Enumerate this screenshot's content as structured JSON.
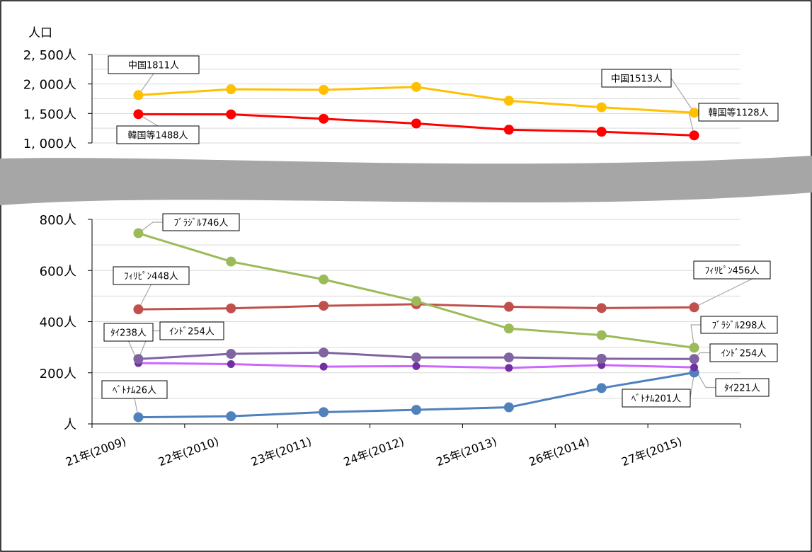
{
  "chart_data": {
    "type": "line",
    "ylabel": "人口",
    "categories": [
      "21年(2009)",
      "22年(2010)",
      "23年(2011)",
      "24年(2012)",
      "25年(2013)",
      "26年(2014)",
      "27年(2015)"
    ],
    "axis_break": [
      800,
      1000
    ],
    "upper_axis": {
      "ylim": [
        1000,
        2500
      ],
      "ticks": [
        {
          "value": 1000,
          "label": "1, 000人"
        },
        {
          "value": 1500,
          "label": "1, 500人"
        },
        {
          "value": 2000,
          "label": "2, 000人"
        },
        {
          "value": 2500,
          "label": "2, 500人"
        }
      ]
    },
    "lower_axis": {
      "ylim": [
        0,
        800
      ],
      "ticks": [
        {
          "value": 0,
          "label": "人"
        },
        {
          "value": 200,
          "label": "200人"
        },
        {
          "value": 400,
          "label": "400人"
        },
        {
          "value": 600,
          "label": "600人"
        },
        {
          "value": 800,
          "label": "800人"
        }
      ]
    },
    "grid": true,
    "series": [
      {
        "key": "china",
        "axis": "upper",
        "color": "#FFC000",
        "values": [
          1811,
          1910,
          1900,
          1950,
          1715,
          1605,
          1513
        ]
      },
      {
        "key": "korea",
        "axis": "upper",
        "color": "#FF0000",
        "values": [
          1488,
          1485,
          1410,
          1330,
          1225,
          1190,
          1128
        ]
      },
      {
        "key": "brazil",
        "axis": "lower",
        "color": "#9BBB59",
        "values": [
          746,
          635,
          565,
          480,
          373,
          347,
          298
        ]
      },
      {
        "key": "philippines",
        "axis": "lower",
        "color": "#C0504D",
        "values": [
          448,
          452,
          462,
          468,
          458,
          453,
          456
        ]
      },
      {
        "key": "india",
        "axis": "lower",
        "color": "#8064A2",
        "values": [
          254,
          274,
          279,
          260,
          260,
          255,
          254
        ]
      },
      {
        "key": "thailand",
        "axis": "lower",
        "color": "#CC66FF",
        "marker_color": "#7030A0",
        "values": [
          238,
          234,
          224,
          226,
          219,
          230,
          221
        ]
      },
      {
        "key": "vietnam",
        "axis": "lower",
        "color": "#4F81BD",
        "values": [
          26,
          30,
          46,
          55,
          65,
          140,
          201
        ]
      }
    ],
    "annotations": [
      {
        "text": "中国1811人",
        "series": "china",
        "point": 0
      },
      {
        "text": "中国1513人",
        "series": "china",
        "point": 6
      },
      {
        "text": "韓国等1488人",
        "series": "korea",
        "point": 0
      },
      {
        "text": "韓国等1128人",
        "series": "korea",
        "point": 6
      },
      {
        "text": "ﾌﾞﾗｼﾞﾙ746人",
        "series": "brazil",
        "point": 0
      },
      {
        "text": "ﾌﾞﾗｼﾞﾙ298人",
        "series": "brazil",
        "point": 6
      },
      {
        "text": "ﾌｨﾘﾋﾟﾝ448人",
        "series": "philippines",
        "point": 0
      },
      {
        "text": "ﾌｨﾘﾋﾟﾝ456人",
        "series": "philippines",
        "point": 6
      },
      {
        "text": "ｲﾝﾄﾞ254人",
        "series": "india",
        "point": 0
      },
      {
        "text": "ｲﾝﾄﾞ254人",
        "series": "india",
        "point": 6
      },
      {
        "text": "ﾀｲ238人",
        "series": "thailand",
        "point": 0
      },
      {
        "text": "ﾀｲ221人",
        "series": "thailand",
        "point": 6
      },
      {
        "text": "ﾍﾞﾄﾅﾑ26人",
        "series": "vietnam",
        "point": 0
      },
      {
        "text": "ﾍﾞﾄﾅﾑ201人",
        "series": "vietnam",
        "point": 6
      }
    ]
  }
}
